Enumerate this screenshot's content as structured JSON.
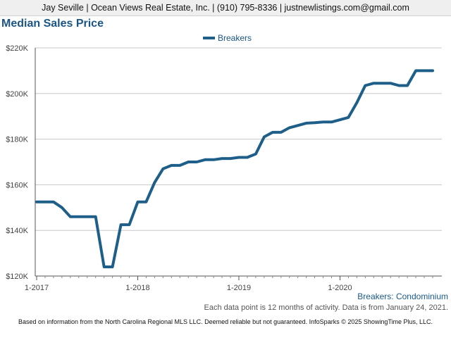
{
  "header": {
    "contact": "Jay Seville | Ocean Views Real Estate, Inc. | (910) 795-8336 | justnewlistings.com@gmail.com"
  },
  "chart_data": {
    "type": "line",
    "title": "Median Sales Price",
    "legend": "top-center",
    "grid": true,
    "ylim": [
      120000,
      220000
    ],
    "y_ticks": [
      120000,
      140000,
      160000,
      180000,
      200000,
      220000
    ],
    "y_tick_labels": [
      "$120K",
      "$140K",
      "$160K",
      "$180K",
      "$200K",
      "$220K"
    ],
    "x_tick_labels": [
      "1-2017",
      "1-2018",
      "1-2019",
      "1-2020"
    ],
    "x": [
      "2017-01",
      "2017-02",
      "2017-03",
      "2017-04",
      "2017-05",
      "2017-06",
      "2017-07",
      "2017-08",
      "2017-09",
      "2017-10",
      "2017-11",
      "2017-12",
      "2018-01",
      "2018-02",
      "2018-03",
      "2018-04",
      "2018-05",
      "2018-06",
      "2018-07",
      "2018-08",
      "2018-09",
      "2018-10",
      "2018-11",
      "2018-12",
      "2019-01",
      "2019-02",
      "2019-03",
      "2019-04",
      "2019-05",
      "2019-06",
      "2019-07",
      "2019-08",
      "2019-09",
      "2019-10",
      "2019-11",
      "2019-12",
      "2020-01",
      "2020-02",
      "2020-03",
      "2020-04",
      "2020-05",
      "2020-06",
      "2020-07",
      "2020-08",
      "2020-09",
      "2020-10",
      "2020-11",
      "2020-12"
    ],
    "series": [
      {
        "name": "Breakers",
        "color": "#1e5f8a",
        "values": [
          152500,
          152500,
          152500,
          150000,
          146000,
          146000,
          146000,
          146000,
          124000,
          124000,
          142500,
          142500,
          152500,
          152500,
          161000,
          167000,
          168500,
          168500,
          170000,
          170000,
          171000,
          171000,
          171500,
          171500,
          172000,
          172000,
          173500,
          181000,
          183000,
          183000,
          185000,
          186000,
          187000,
          187200,
          187500,
          187500,
          188500,
          189500,
          196000,
          203500,
          204500,
          204500,
          204500,
          203500,
          203500,
          210000,
          210000,
          210000
        ]
      }
    ]
  },
  "footer": {
    "subtitle": "Breakers: Condominium",
    "note": "Each data point is 12 months of activity. Data is from January 24, 2021.",
    "disclaimer": "Based on information from the North Carolina Regional MLS LLC. Deemed reliable but not guaranteed. InfoSparks © 2025 ShowingTime Plus, LLC."
  }
}
